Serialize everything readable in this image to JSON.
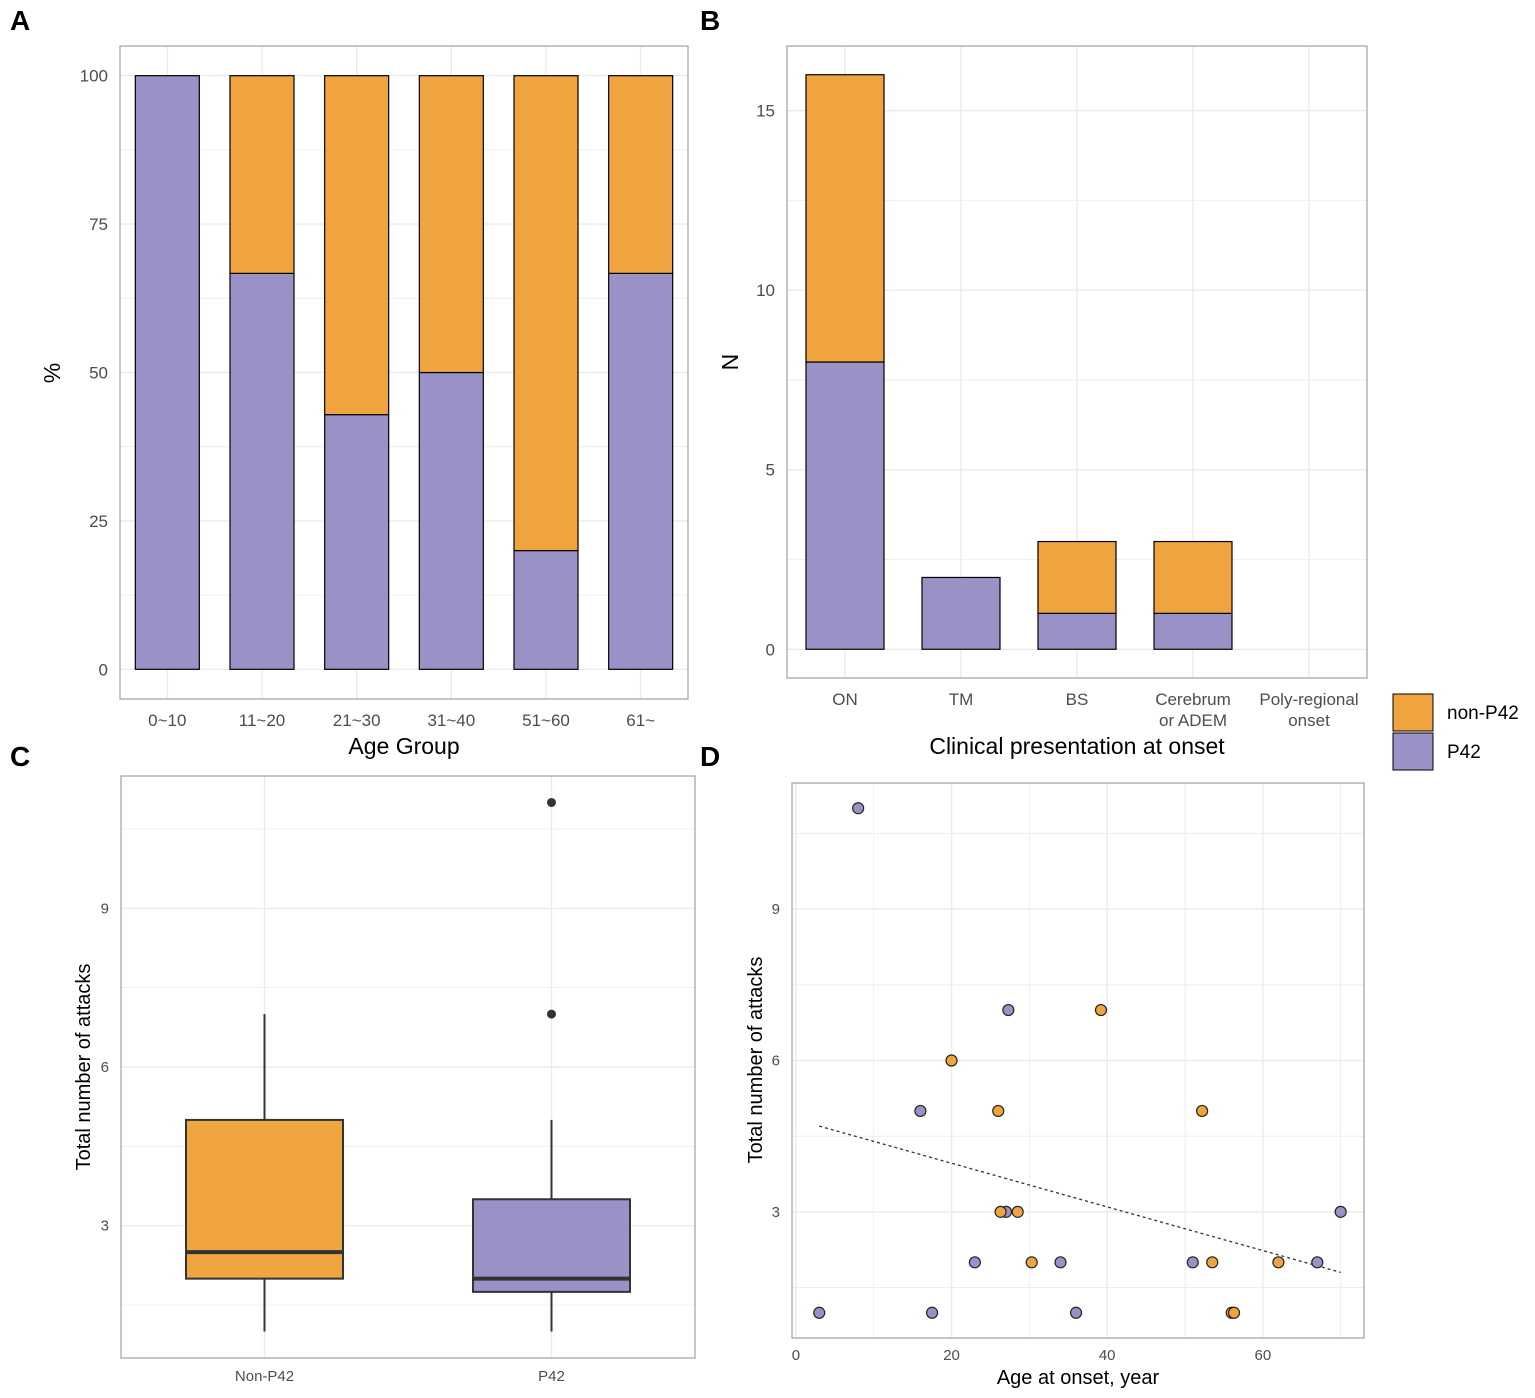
{
  "colors": {
    "nonP42": "#F0A43F",
    "P42": "#9A91C6",
    "grid": "#EBEBEB",
    "border": "#A0A0A0"
  },
  "legend": {
    "items": [
      {
        "label": "non-P42",
        "key": "nonP42"
      },
      {
        "label": "P42",
        "key": "P42"
      }
    ]
  },
  "chart_data": [
    {
      "panel": "A",
      "type": "bar",
      "stacked": true,
      "title": "",
      "xlabel": "Age Group",
      "ylabel": "%",
      "categories": [
        "0~10",
        "11~20",
        "21~30",
        "31~40",
        "51~60",
        "61~"
      ],
      "series": [
        {
          "name": "P42",
          "values": [
            100,
            66.7,
            42.9,
            50,
            20,
            66.7
          ]
        },
        {
          "name": "non-P42",
          "values": [
            0,
            33.3,
            57.1,
            50,
            80,
            33.3
          ]
        }
      ],
      "ylim": [
        -5,
        105
      ],
      "yticks": [
        0,
        25,
        50,
        75,
        100
      ],
      "yticklabels": [
        "0",
        "25",
        "50",
        "75",
        "100"
      ]
    },
    {
      "panel": "B",
      "type": "bar",
      "stacked": true,
      "title": "",
      "xlabel": "Clinical presentation at onset",
      "ylabel": "N",
      "categories": [
        "ON",
        "TM",
        "BS",
        "Cerebrum or ADEM",
        "Poly-regional onset"
      ],
      "category_lines": [
        [
          "ON"
        ],
        [
          "TM"
        ],
        [
          "BS"
        ],
        [
          "Cerebrum",
          "or ADEM"
        ],
        [
          "Poly-regional",
          "onset"
        ]
      ],
      "series": [
        {
          "name": "P42",
          "values": [
            8,
            2,
            1,
            1,
            0
          ]
        },
        {
          "name": "non-P42",
          "values": [
            8,
            0,
            2,
            2,
            0
          ]
        }
      ],
      "ylim": [
        -0.8,
        16.8
      ],
      "yticks": [
        0,
        5,
        10,
        15
      ],
      "yticklabels": [
        "0",
        "5",
        "10",
        "15"
      ]
    },
    {
      "panel": "C",
      "type": "box",
      "title": "",
      "xlabel": "",
      "ylabel": "Total number of attacks",
      "categories": [
        "Non-P42",
        "P42"
      ],
      "boxes": [
        {
          "name": "Non-P42",
          "color_key": "nonP42",
          "min": 1,
          "q1": 2,
          "median": 2.5,
          "q3": 5,
          "max": 7,
          "outliers": []
        },
        {
          "name": "P42",
          "color_key": "P42",
          "min": 1,
          "q1": 1.75,
          "median": 2,
          "q3": 3.5,
          "max": 5,
          "outliers": [
            7,
            11
          ]
        }
      ],
      "ylim": [
        0.5,
        11.5
      ],
      "yticks": [
        3,
        6,
        9
      ],
      "yticklabels": [
        "3",
        "6",
        "9"
      ]
    },
    {
      "panel": "D",
      "type": "scatter",
      "title": "",
      "xlabel": "Age at onset, year",
      "ylabel": "Total number of attacks",
      "xlim": [
        -0.5,
        73
      ],
      "ylim": [
        0.5,
        11.5
      ],
      "xticks": [
        0,
        20,
        40,
        60
      ],
      "xticklabels": [
        "0",
        "20",
        "40",
        "60"
      ],
      "yticks": [
        3,
        6,
        9
      ],
      "yticklabels": [
        "3",
        "6",
        "9"
      ],
      "series": [
        {
          "name": "P42",
          "points": [
            [
              3,
              1
            ],
            [
              8,
              11
            ],
            [
              16,
              5
            ],
            [
              17.5,
              1
            ],
            [
              23,
              2
            ],
            [
              27,
              3
            ],
            [
              27.3,
              7
            ],
            [
              34,
              2
            ],
            [
              36,
              1
            ],
            [
              51,
              2
            ],
            [
              67,
              2
            ],
            [
              70,
              3
            ]
          ]
        },
        {
          "name": "non-P42",
          "points": [
            [
              20,
              6
            ],
            [
              26,
              5
            ],
            [
              26.3,
              3
            ],
            [
              28.5,
              3
            ],
            [
              30.3,
              2
            ],
            [
              39.2,
              7
            ],
            [
              52.2,
              5
            ],
            [
              53.5,
              2
            ],
            [
              56,
              1
            ],
            [
              56.3,
              1
            ],
            [
              62,
              2
            ]
          ]
        }
      ],
      "trendline": {
        "style": "dashed",
        "from": [
          3,
          4.7
        ],
        "to": [
          70,
          1.8
        ]
      }
    }
  ]
}
